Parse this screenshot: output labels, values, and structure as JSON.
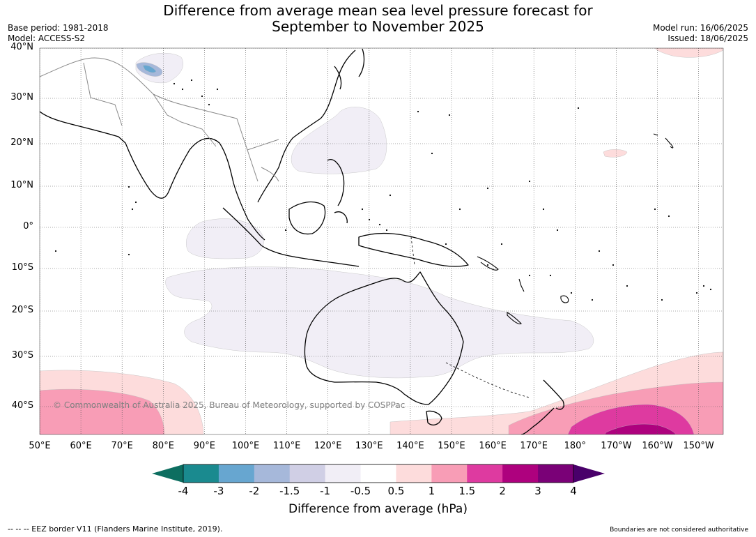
{
  "title_line1": "Difference from average mean sea level pressure forecast for",
  "title_line2": "September to November 2025",
  "meta": {
    "base_period": "Base period: 1981-2018",
    "model": "Model: ACCESS-S2",
    "model_run": "Model run: 16/06/2025",
    "issued": "Issued: 18/06/2025"
  },
  "lat_labels": [
    "40°N",
    "30°N",
    "20°N",
    "10°N",
    "0°",
    "10°S",
    "20°S",
    "30°S",
    "40°S"
  ],
  "lon_labels": [
    "50°E",
    "60°E",
    "70°E",
    "80°E",
    "90°E",
    "100°E",
    "110°E",
    "120°E",
    "130°E",
    "140°E",
    "150°E",
    "160°E",
    "170°E",
    "180°",
    "170°W",
    "160°W",
    "150°W"
  ],
  "copyright": "© Commonwealth of Australia 2025, Bureau of Meteorology, supported by COSPPac",
  "colorbar": {
    "ticks": [
      "-4",
      "-3",
      "-2",
      "-1.5",
      "-1",
      "-0.5",
      "0.5",
      "1",
      "1.5",
      "2",
      "3",
      "4"
    ],
    "colors": [
      "#1a8a8f",
      "#67a6d0",
      "#a6b8da",
      "#d0cfe5",
      "#f1eef6",
      "#ffffff",
      "#fddcdc",
      "#f89db6",
      "#de3aa0",
      "#ae017e",
      "#7a0177"
    ],
    "under_color": "#0d6e60",
    "over_color": "#49006a",
    "label": "Difference from average (hPa)"
  },
  "anomaly_colors": {
    "light_purple": "#f1eef6",
    "light_pink": "#fddcdc",
    "pink": "#f89db6",
    "magenta": "#de3aa0",
    "deep_magenta": "#ae017e",
    "light_blue": "#a6b8da",
    "blue": "#67a6d0"
  },
  "footer_left": "--  --  -- EEZ border V11 (Flanders Marine Institute, 2019).",
  "footer_right": "Boundaries are not considered authoritative"
}
